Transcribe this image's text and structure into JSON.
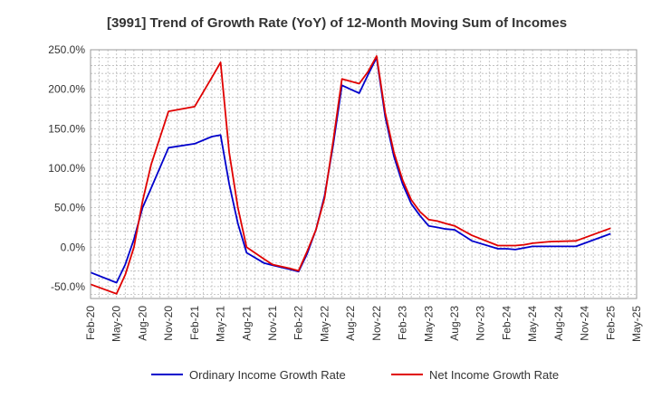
{
  "chart_data": {
    "type": "line",
    "title": "[3991]  Trend of Growth Rate (YoY) of 12-Month Moving Sum of Incomes",
    "xlabel": "",
    "ylabel": "",
    "ylim": [
      -65,
      250
    ],
    "y_ticks": [
      "250.0%",
      "200.0%",
      "150.0%",
      "100.0%",
      "50.0%",
      "0.0%",
      "-50.0%"
    ],
    "y_tick_values": [
      250,
      200,
      150,
      100,
      50,
      0,
      -50
    ],
    "x_ticks": [
      "Feb-20",
      "May-20",
      "Aug-20",
      "Nov-20",
      "Feb-21",
      "May-21",
      "Aug-21",
      "Nov-21",
      "Feb-22",
      "May-22",
      "Aug-22",
      "Nov-22",
      "Feb-23",
      "May-23",
      "Aug-23",
      "Nov-23",
      "Feb-24",
      "May-24",
      "Aug-24",
      "Nov-24",
      "Feb-25",
      "May-25"
    ],
    "x_range_months": [
      0,
      63
    ],
    "grid": true,
    "legend_position": "bottom",
    "series": [
      {
        "name": "Ordinary Income Growth Rate",
        "color": "#0000cc",
        "x": [
          0,
          3,
          4,
          5,
          6,
          7,
          9,
          12,
          14,
          15,
          16,
          17,
          18,
          20,
          21,
          23,
          24,
          25,
          26,
          27,
          28,
          29,
          30,
          31,
          32,
          33,
          34,
          35,
          36,
          37,
          38,
          39,
          40,
          41,
          42,
          44,
          47,
          48,
          49,
          50,
          51,
          53,
          56,
          57,
          58,
          59,
          60
        ],
        "values": [
          -32,
          -45,
          -22,
          10,
          50,
          75,
          126,
          131,
          140,
          142,
          80,
          30,
          -7,
          -20,
          -23,
          -28,
          -31,
          -8,
          22,
          65,
          130,
          205,
          200,
          195,
          218,
          240,
          165,
          115,
          80,
          55,
          40,
          27,
          25,
          23,
          22,
          8,
          -2,
          -2,
          -3,
          -1,
          1,
          1,
          1,
          5,
          9,
          13,
          17
        ]
      },
      {
        "name": "Net Income Growth Rate",
        "color": "#e00000",
        "x": [
          0,
          3,
          4,
          5,
          6,
          7,
          9,
          12,
          14,
          15,
          16,
          17,
          18,
          20,
          21,
          23,
          24,
          25,
          26,
          27,
          28,
          29,
          30,
          31,
          32,
          33,
          34,
          35,
          36,
          37,
          38,
          39,
          40,
          41,
          42,
          44,
          47,
          48,
          49,
          50,
          51,
          53,
          56,
          57,
          58,
          59,
          60
        ],
        "values": [
          -47,
          -59,
          -35,
          0,
          58,
          105,
          172,
          178,
          215,
          234,
          120,
          50,
          0,
          -15,
          -22,
          -27,
          -30,
          -5,
          22,
          62,
          135,
          213,
          210,
          207,
          222,
          242,
          170,
          120,
          85,
          60,
          45,
          35,
          33,
          30,
          27,
          15,
          2,
          2,
          2,
          3,
          5,
          7,
          8,
          12,
          16,
          20,
          24
        ]
      }
    ]
  }
}
